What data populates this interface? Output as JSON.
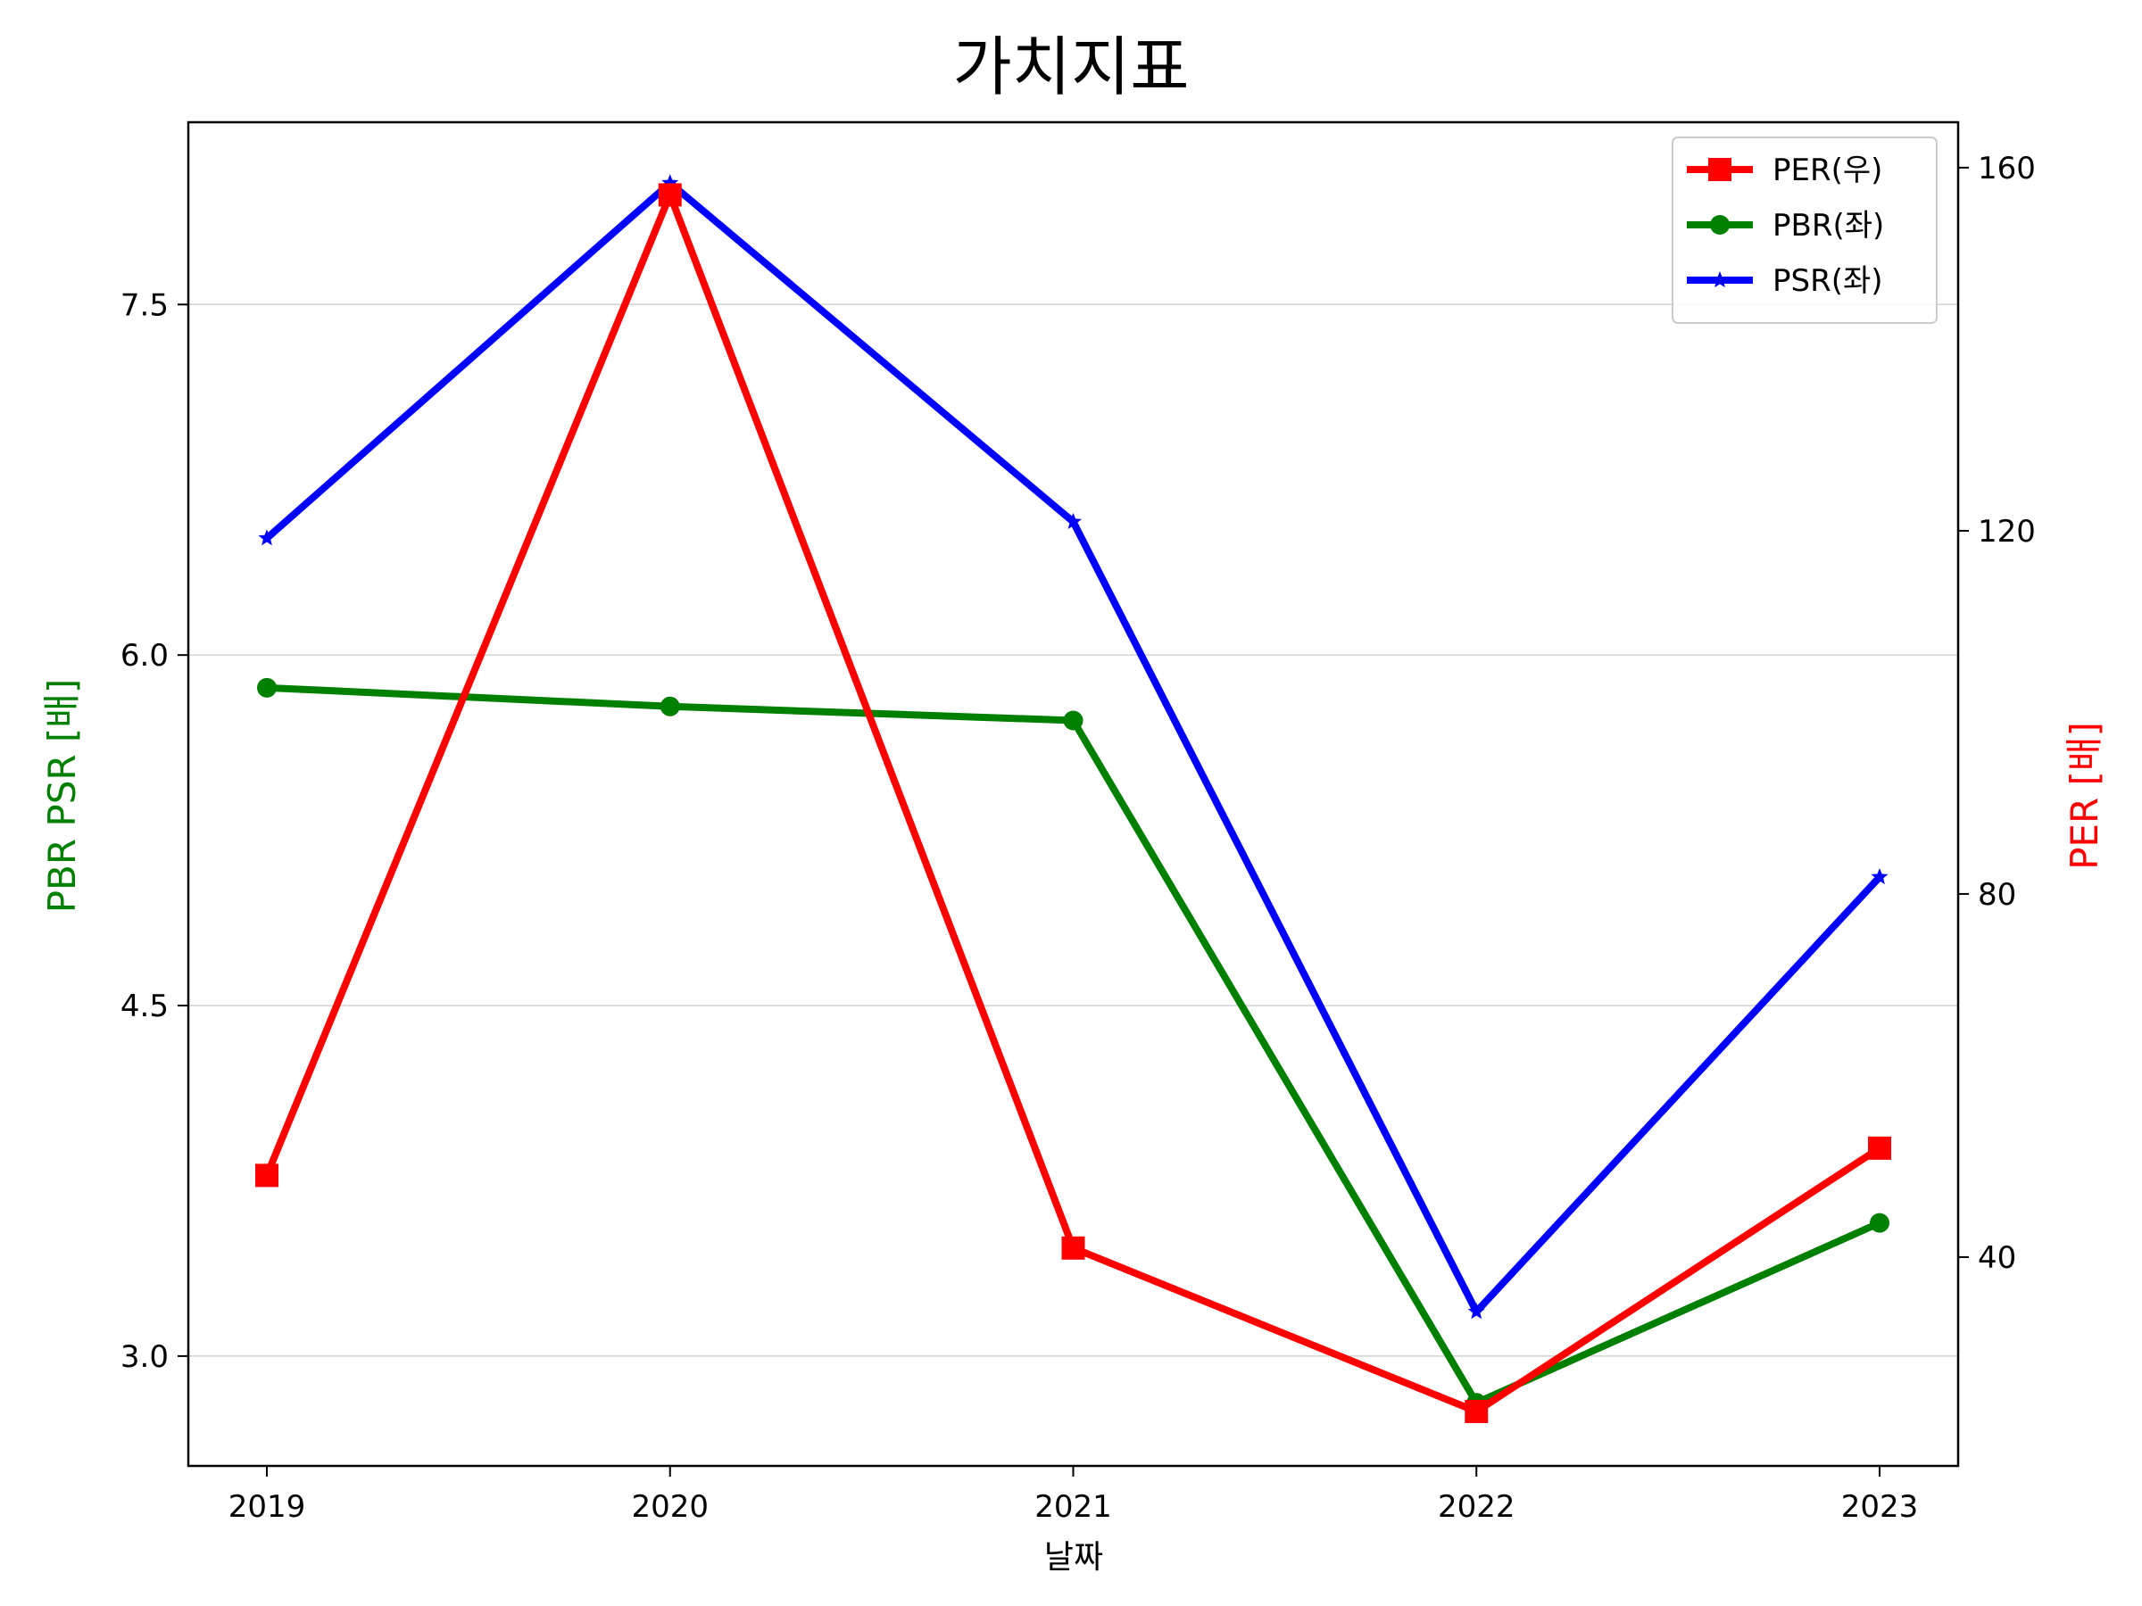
{
  "chart_data": {
    "type": "line",
    "title": "가치지표",
    "xlabel": "날짜",
    "ylabel_left": "PBR PSR [배]",
    "ylabel_right": "PER [배]",
    "x": [
      "2019",
      "2020",
      "2021",
      "2022",
      "2023"
    ],
    "left_axis": {
      "ylim": [
        2.53,
        8.28
      ],
      "ticks": [
        "3.0",
        "4.5",
        "6.0",
        "7.5"
      ],
      "tick_values": [
        3.0,
        4.5,
        6.0,
        7.5
      ]
    },
    "right_axis": {
      "ylim": [
        17,
        165
      ],
      "ticks": [
        "40",
        "80",
        "120",
        "160"
      ],
      "tick_values": [
        40,
        80,
        120,
        160
      ]
    },
    "grid": "horizontal on left-axis ticks",
    "legend_position": "top-right",
    "series": [
      {
        "name": "PER(우)",
        "axis": "right",
        "color": "#ff0000",
        "marker": "square",
        "values": [
          49,
          157,
          41,
          23,
          52
        ]
      },
      {
        "name": "PBR(좌)",
        "axis": "left",
        "color": "#008000",
        "marker": "circle",
        "values": [
          5.86,
          5.78,
          5.72,
          2.8,
          3.57
        ]
      },
      {
        "name": "PSR(좌)",
        "axis": "left",
        "color": "#0000ff",
        "marker": "star",
        "values": [
          6.5,
          8.02,
          6.57,
          3.19,
          5.05
        ]
      }
    ]
  }
}
